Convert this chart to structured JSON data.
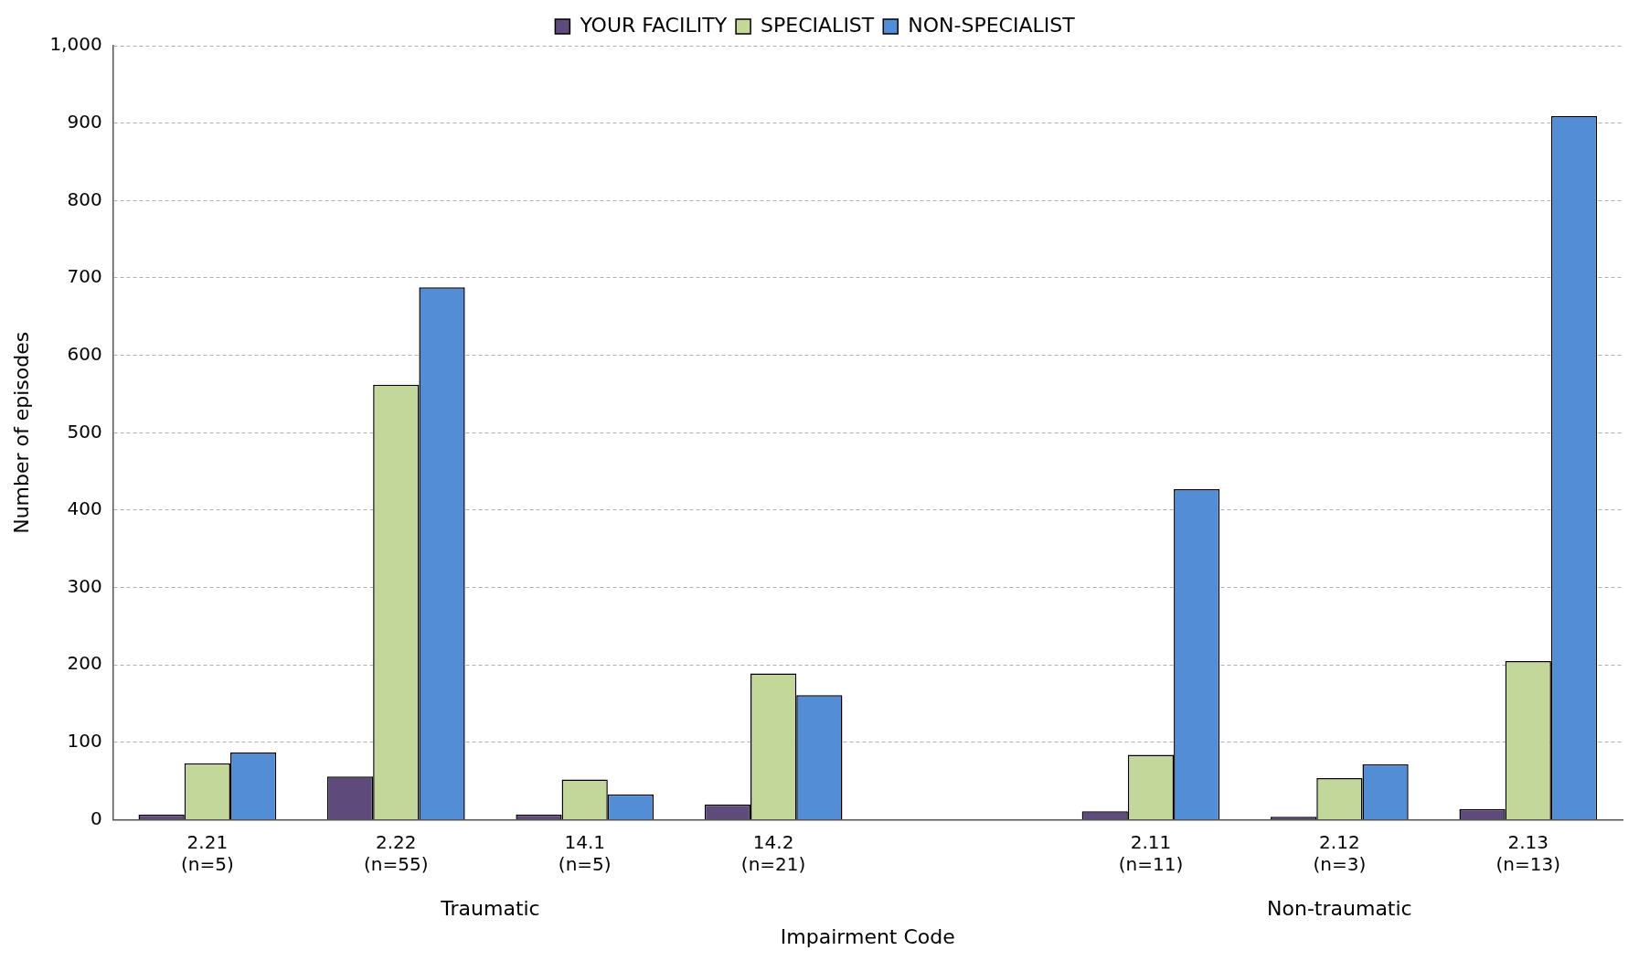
{
  "chart_data": {
    "type": "bar",
    "categories": [
      "2.21\n(n=5)",
      "2.22\n(n=55)",
      "14.1\n(n=5)",
      "14.2\n(n=21)",
      null,
      "2.11\n(n=11)",
      "2.12\n(n=3)",
      "2.13\n(n=13)"
    ],
    "series": [
      {
        "name": "YOUR FACILITY",
        "color": "#5f4b7b",
        "values": [
          7,
          56,
          7,
          20,
          null,
          11,
          4,
          14
        ]
      },
      {
        "name": "SPECIALIST",
        "color": "#c4d79b",
        "values": [
          73,
          562,
          52,
          189,
          null,
          84,
          54,
          205
        ]
      },
      {
        "name": "NON-SPECIALIST",
        "color": "#538dd5",
        "values": [
          87,
          688,
          33,
          161,
          null,
          427,
          72,
          909
        ]
      }
    ],
    "xlabel": "Impairment Code",
    "ylabel": "Number of episodes",
    "annotations": [
      "Traumatic",
      "Non-traumatic"
    ],
    "ylim": [
      0,
      1000
    ],
    "yticks": [
      0,
      100,
      200,
      300,
      400,
      500,
      600,
      700,
      800,
      900,
      {
        "value": 1000,
        "label": "1,000"
      }
    ],
    "grid": "y",
    "legend": "top"
  }
}
